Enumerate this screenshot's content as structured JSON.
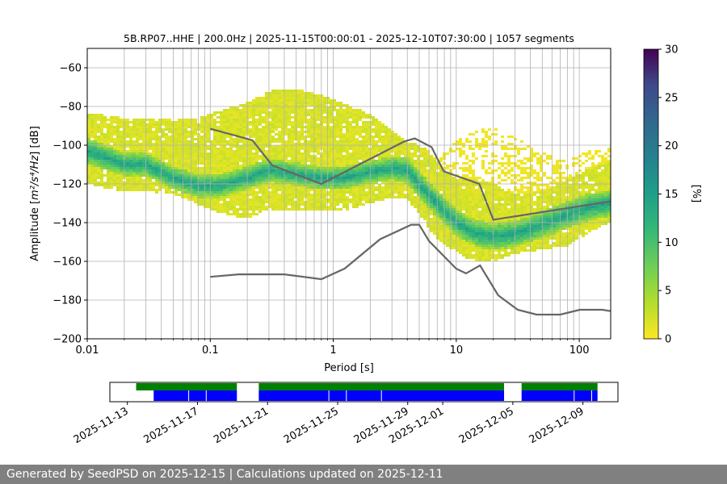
{
  "chart_data": {
    "type": "heatmap",
    "title": "5B.RP07..HHE | 200.0Hz | 2025-11-15T00:00:01 - 2025-12-10T07:30:00 | 1057 segments",
    "xlabel": "Period [s]",
    "ylabel_main": "Amplitude [",
    "ylabel_math": "m²/s⁴/Hz",
    "ylabel_end": "] [dB]",
    "x_scale": "log",
    "xlim": [
      0.01,
      180
    ],
    "ylim": [
      -200,
      -50
    ],
    "x_ticks": [
      {
        "value": 0.01,
        "label": "0.01"
      },
      {
        "value": 0.1,
        "label": "0.1"
      },
      {
        "value": 1,
        "label": "1"
      },
      {
        "value": 10,
        "label": "10"
      },
      {
        "value": 100,
        "label": "100"
      }
    ],
    "y_ticks": [
      {
        "value": -60,
        "label": "−60"
      },
      {
        "value": -80,
        "label": "−80"
      },
      {
        "value": -100,
        "label": "−100"
      },
      {
        "value": -120,
        "label": "−120"
      },
      {
        "value": -140,
        "label": "−140"
      },
      {
        "value": -160,
        "label": "−160"
      },
      {
        "value": -180,
        "label": "−180"
      },
      {
        "value": -200,
        "label": "−200"
      }
    ],
    "grid": true,
    "colormap": "viridis_r",
    "colorbar": {
      "label": "[%]",
      "range": [
        0,
        30
      ],
      "ticks": [
        {
          "value": 0,
          "label": "0"
        },
        {
          "value": 5,
          "label": "5"
        },
        {
          "value": 10,
          "label": "10"
        },
        {
          "value": 15,
          "label": "15"
        },
        {
          "value": 20,
          "label": "20"
        },
        {
          "value": 25,
          "label": "25"
        },
        {
          "value": 30,
          "label": "30"
        }
      ]
    },
    "density_bands": {
      "period": [
        0.01,
        0.02,
        0.03,
        0.05,
        0.08,
        0.12,
        0.2,
        0.3,
        0.5,
        0.8,
        1.2,
        2,
        3,
        4,
        5,
        6,
        7,
        8,
        10,
        12,
        15,
        20,
        30,
        50,
        80,
        120,
        180
      ],
      "mode_db": [
        -103,
        -110,
        -110,
        -117,
        -121,
        -121,
        -117,
        -113,
        -115,
        -117,
        -117,
        -114,
        -112,
        -113,
        -120,
        -126,
        -130,
        -134,
        -140,
        -143,
        -146,
        -147,
        -146,
        -141,
        -136,
        -132,
        -130
      ],
      "core_halfwidth_db": [
        7,
        6,
        6,
        6,
        6,
        6,
        6,
        6,
        6,
        6,
        6,
        6,
        6,
        7,
        7,
        7,
        7,
        7,
        7,
        7,
        7,
        7,
        7,
        7,
        7,
        7,
        7
      ],
      "upper_db": [
        -83,
        -86,
        -86,
        -87,
        -86,
        -82,
        -78,
        -72,
        -71,
        -74,
        -78,
        -84,
        -92,
        -98,
        -100,
        -103,
        -108,
        -113,
        -117,
        -118,
        -118,
        -120,
        -125,
        -124,
        -118,
        -112,
        -108
      ],
      "lower_db": [
        -120,
        -124,
        -124,
        -125,
        -131,
        -135,
        -138,
        -133,
        -134,
        -134,
        -134,
        -130,
        -127,
        -128,
        -135,
        -143,
        -148,
        -151,
        -155,
        -158,
        -160,
        -160,
        -156,
        -154,
        -152,
        -145,
        -140
      ],
      "sparse_upper_db": [
        null,
        null,
        null,
        null,
        null,
        null,
        null,
        null,
        null,
        null,
        null,
        null,
        null,
        null,
        null,
        null,
        -108,
        -104,
        -98,
        -95,
        -92,
        -91,
        -96,
        -104,
        -108,
        -103,
        -101
      ]
    },
    "noise_model_high": {
      "period": [
        0.1,
        0.22,
        0.32,
        0.8,
        3.8,
        4.6,
        6.3,
        7.9,
        15.4,
        20,
        180
      ],
      "db": [
        -91.5,
        -97.4,
        -110.5,
        -120,
        -98,
        -96.5,
        -101,
        -113.5,
        -120,
        -138.5,
        -129
      ]
    },
    "noise_model_low": {
      "period": [
        0.1,
        0.17,
        0.4,
        0.8,
        1.24,
        2.4,
        4.3,
        5,
        6,
        10,
        12,
        15.6,
        21.9,
        31.6,
        45,
        70,
        101,
        154,
        180
      ],
      "db": [
        -168,
        -166.7,
        -166.7,
        -169.2,
        -163.7,
        -148.6,
        -141.1,
        -141.1,
        -149.5,
        -163.8,
        -166.2,
        -162.1,
        -177.5,
        -185,
        -187.5,
        -187.5,
        -185,
        -185,
        -185.7
      ]
    },
    "timeline": {
      "dates": [
        {
          "date": "2025-11-13",
          "label": "2025-11-13"
        },
        {
          "date": "2025-11-17",
          "label": "2025-11-17"
        },
        {
          "date": "2025-11-21",
          "label": "2025-11-21"
        },
        {
          "date": "2025-11-25",
          "label": "2025-11-25"
        },
        {
          "date": "2025-11-29",
          "label": "2025-11-29"
        },
        {
          "date": "2025-12-01",
          "label": "2025-12-01"
        },
        {
          "date": "2025-12-05",
          "label": "2025-12-05"
        },
        {
          "date": "2025-12-09",
          "label": "2025-12-09"
        }
      ],
      "range": [
        "2025-11-12",
        "2025-12-11"
      ],
      "available_color": "#008000",
      "processed_color": "#0000ff",
      "available_segments": [
        [
          "2025-11-13 12:00",
          "2025-11-19 06:00"
        ],
        [
          "2025-11-20 12:00",
          "2025-12-04 12:00"
        ],
        [
          "2025-12-05 12:00",
          "2025-12-09 20:00"
        ]
      ],
      "processed_segments": [
        [
          "2025-11-14 12:00",
          "2025-11-19 06:00"
        ],
        [
          "2025-11-20 12:00",
          "2025-12-04 12:00"
        ],
        [
          "2025-12-05 12:00",
          "2025-12-09 20:00"
        ]
      ],
      "gap_marks": [
        "2025-11-16 12:00",
        "2025-11-17 12:00",
        "2025-11-24 12:00",
        "2025-11-25 12:00",
        "2025-11-27 12:00",
        "2025-12-08 12:00",
        "2025-12-09 12:00"
      ]
    },
    "colors": {
      "noise_model": "#666666",
      "grid": "#b0b0b0"
    }
  },
  "footer": {
    "text": "Generated by SeedPSD on 2025-12-15 | Calculations updated on 2025-12-11"
  }
}
